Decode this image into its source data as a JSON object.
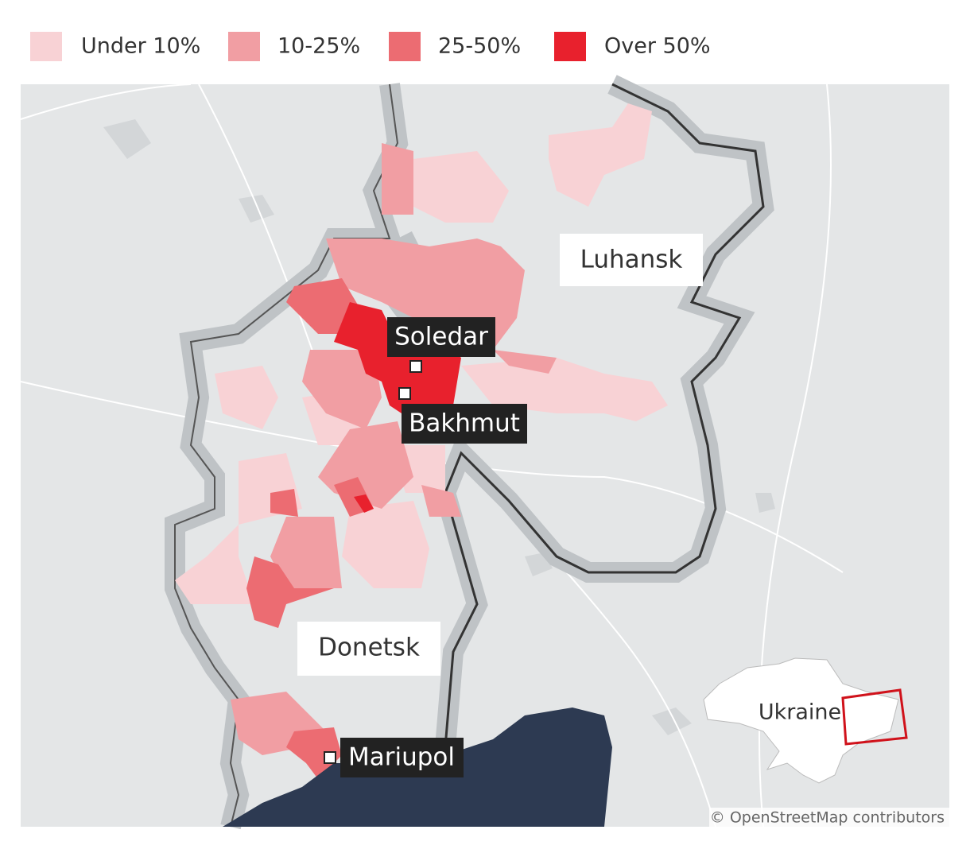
{
  "legend": [
    {
      "label": "Under 10%",
      "color": "#f8d2d5"
    },
    {
      "label": "10-25%",
      "color": "#f19ea3"
    },
    {
      "label": "25-50%",
      "color": "#ec6c72"
    },
    {
      "label": "Over 50%",
      "color": "#e8212d"
    }
  ],
  "labels": {
    "regions": [
      "Luhansk",
      "Donetsk"
    ],
    "cities": [
      "Soledar",
      "Bakhmut",
      "Mariupol"
    ],
    "inset": "Ukraine"
  },
  "attribution": "© OpenStreetMap contributors"
}
